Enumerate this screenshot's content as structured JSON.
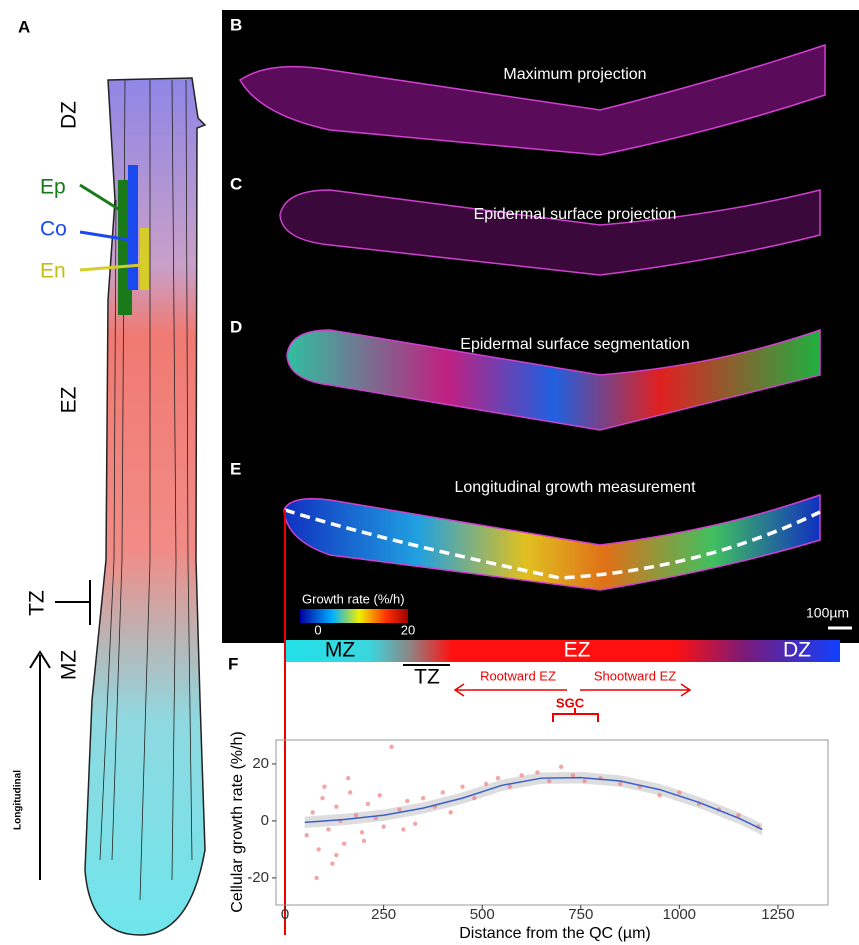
{
  "panels": {
    "A": {
      "label": "A",
      "zones": [
        "DZ",
        "EZ",
        "TZ",
        "MZ"
      ],
      "tissues": [
        "Ep",
        "Co",
        "En"
      ],
      "axis_label": "Longitudinal"
    },
    "B": {
      "label": "B",
      "title": "Maximum projection"
    },
    "C": {
      "label": "C",
      "title": "Epidermal surface projection"
    },
    "D": {
      "label": "D",
      "title": "Epidermal surface segmentation"
    },
    "E": {
      "label": "E",
      "title": "Longitudinal growth measurement",
      "colorbar": {
        "title": "Growth rate (%/h)",
        "min": 0,
        "max": 20
      },
      "scale_bar": "100µm"
    }
  },
  "chart_data": {
    "type": "scatter",
    "label": "F",
    "zone_labels": [
      "MZ",
      "TZ",
      "EZ",
      "DZ"
    ],
    "annotations": [
      "Rootward EZ",
      "Shootward EZ",
      "SGC"
    ],
    "xlabel": "Distance from the QC (µm)",
    "ylabel": "Cellular growth rate (%/h)",
    "xlim": [
      -23,
      1377
    ],
    "ylim": [
      -29.5,
      28.4
    ],
    "xticks": [
      0,
      250,
      500,
      750,
      1000,
      1250
    ],
    "yticks": [
      -20,
      0,
      20
    ],
    "series": [
      {
        "color": "#f08080",
        "x": [
          55,
          70,
          85,
          95,
          110,
          120,
          130,
          140,
          150,
          165,
          180,
          195,
          210,
          230,
          250,
          270,
          290,
          310,
          330,
          350,
          380,
          400,
          420,
          450,
          480,
          510,
          540,
          570,
          600,
          640,
          670,
          700,
          730,
          760,
          800,
          850,
          900,
          950,
          1000,
          1050,
          1100,
          1150,
          1200,
          80,
          100,
          130,
          160,
          200,
          240,
          300
        ],
        "values": [
          -5,
          3,
          -10,
          8,
          -3,
          -15,
          5,
          0,
          -8,
          10,
          2,
          -4,
          6,
          1,
          -2,
          26,
          4,
          7,
          -1,
          8,
          5,
          10,
          3,
          12,
          8,
          13,
          15,
          12,
          16,
          17,
          14,
          19,
          16,
          14,
          15,
          13,
          12,
          9,
          10,
          6,
          4,
          2,
          -2,
          -20,
          12,
          -12,
          15,
          -7,
          9,
          -3
        ]
      },
      {
        "color": "#3a5fcd",
        "x": [
          50,
          150,
          250,
          350,
          450,
          550,
          650,
          750,
          850,
          950,
          1050,
          1150,
          1210
        ],
        "values": [
          -0.5,
          0.5,
          2,
          4.5,
          8,
          12.5,
          15,
          15.2,
          14,
          11,
          6.5,
          1,
          -3
        ]
      }
    ]
  }
}
